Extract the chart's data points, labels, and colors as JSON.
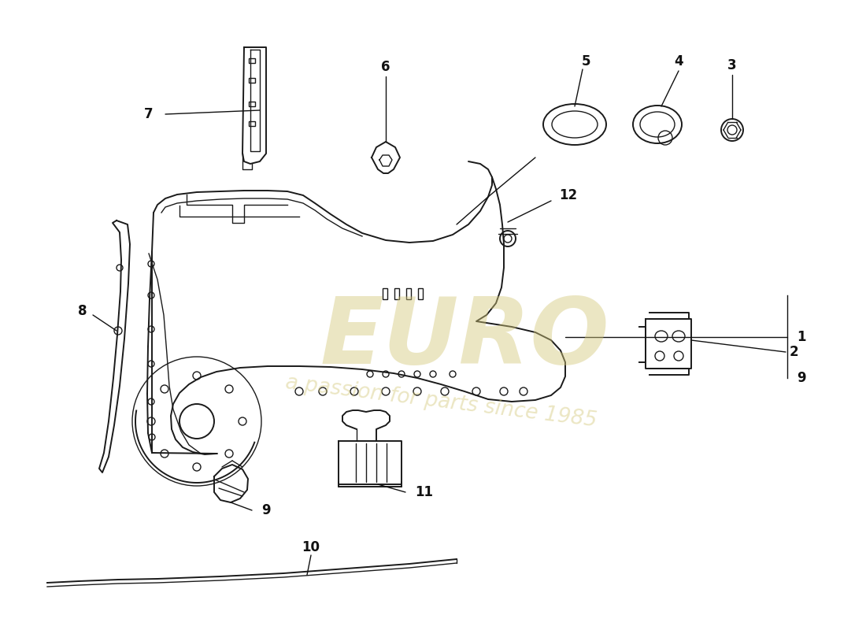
{
  "background_color": "#ffffff",
  "line_color": "#1a1a1a",
  "label_color": "#111111",
  "watermark_color": "#d4c87a",
  "watermark_alpha": 0.45,
  "label_fontsize": 12
}
